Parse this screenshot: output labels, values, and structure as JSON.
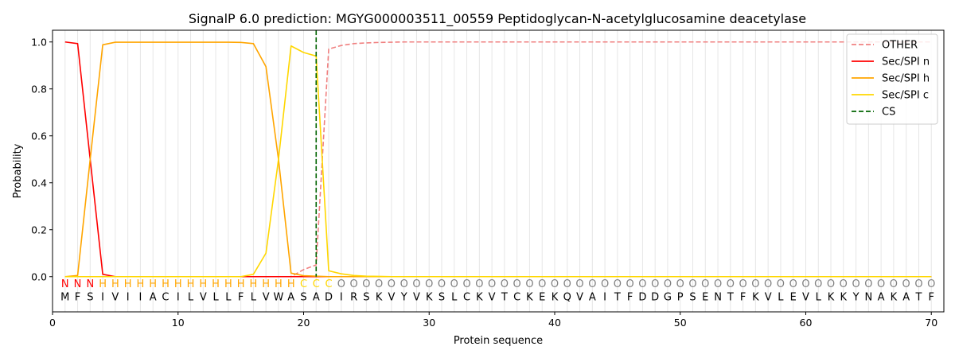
{
  "chart_data": {
    "type": "line",
    "title": "SignalP 6.0 prediction: MGYG000003511_00559 Peptidoglycan-N-acetylglucosamine deacetylase",
    "xlabel": "Protein sequence",
    "ylabel": "Probability",
    "xlim": [
      0,
      71
    ],
    "ylim": [
      -0.15,
      1.05
    ],
    "xticks": [
      0,
      10,
      20,
      30,
      40,
      50,
      60,
      70
    ],
    "yticks": [
      0.0,
      0.2,
      0.4,
      0.6,
      0.8,
      1.0
    ],
    "xtick_labels": [
      "0",
      "10",
      "20",
      "30",
      "40",
      "50",
      "60",
      "70"
    ],
    "ytick_labels": [
      "0.0",
      "0.2",
      "0.4",
      "0.6",
      "0.8",
      "1.0"
    ],
    "legend_position": "top-right",
    "sequence": "MFSIVIIACILVLLFLVWASADIRSKVYVKSLCKVTCKEKQVAITFDDGPSENTFKVLEVLKKYNAKATF",
    "labels": "NNNHHHHHHHHHHHHHHHHCCCOOOOOOOOOOOOOOOOOOOOOOOOOOOOOOOOOOOOOOOOOOOOOOOOO",
    "label_colors": {
      "N": "#ff0000",
      "H": "#ffa500",
      "C": "#ffd700",
      "O": "#808080"
    },
    "cleavage_site": 21,
    "series": [
      {
        "name": "OTHER",
        "color": "#f08080",
        "dash": "dashed",
        "values": [
          0,
          0,
          0,
          0,
          0,
          0,
          0,
          0,
          0,
          0,
          0,
          0,
          0,
          0,
          0,
          0,
          0,
          0,
          0,
          0.03,
          0.05,
          0.97,
          0.985,
          0.993,
          0.996,
          0.998,
          0.999,
          1,
          1,
          1,
          1,
          1,
          1,
          1,
          1,
          1,
          1,
          1,
          1,
          1,
          1,
          1,
          1,
          1,
          1,
          1,
          1,
          1,
          1,
          1,
          1,
          1,
          1,
          1,
          1,
          1,
          1,
          1,
          1,
          1,
          1,
          1,
          1,
          1,
          1,
          1,
          1,
          1,
          1,
          1
        ]
      },
      {
        "name": "Sec/SPI n",
        "color": "#ff0000",
        "dash": "solid",
        "values": [
          1.0,
          0.993,
          0.5,
          0.01,
          0,
          0,
          0,
          0,
          0,
          0,
          0,
          0,
          0,
          0,
          0,
          0,
          0,
          0,
          0,
          0,
          0,
          0,
          0,
          0,
          0,
          0,
          0,
          0,
          0,
          0,
          0,
          0,
          0,
          0,
          0,
          0,
          0,
          0,
          0,
          0,
          0,
          0,
          0,
          0,
          0,
          0,
          0,
          0,
          0,
          0,
          0,
          0,
          0,
          0,
          0,
          0,
          0,
          0,
          0,
          0,
          0,
          0,
          0,
          0,
          0,
          0,
          0,
          0,
          0,
          0
        ]
      },
      {
        "name": "Sec/SPI h",
        "color": "#ffa500",
        "dash": "solid",
        "values": [
          0,
          0.005,
          0.5,
          0.988,
          0.999,
          0.999,
          0.999,
          0.999,
          0.999,
          0.999,
          0.999,
          0.999,
          0.999,
          0.999,
          0.998,
          0.993,
          0.895,
          0.5,
          0.015,
          0.004,
          0.002,
          0,
          0,
          0,
          0,
          0,
          0,
          0,
          0,
          0,
          0,
          0,
          0,
          0,
          0,
          0,
          0,
          0,
          0,
          0,
          0,
          0,
          0,
          0,
          0,
          0,
          0,
          0,
          0,
          0,
          0,
          0,
          0,
          0,
          0,
          0,
          0,
          0,
          0,
          0,
          0,
          0,
          0,
          0,
          0,
          0,
          0,
          0,
          0,
          0
        ]
      },
      {
        "name": "Sec/SPI c",
        "color": "#ffd700",
        "dash": "solid",
        "values": [
          0,
          0,
          0,
          0,
          0,
          0,
          0,
          0,
          0,
          0,
          0,
          0,
          0,
          0,
          0,
          0.01,
          0.1,
          0.5,
          0.983,
          0.955,
          0.94,
          0.025,
          0.012,
          0.005,
          0.002,
          0.001,
          0,
          0,
          0,
          0,
          0,
          0,
          0,
          0,
          0,
          0,
          0,
          0,
          0,
          0,
          0,
          0,
          0,
          0,
          0,
          0,
          0,
          0,
          0,
          0,
          0,
          0,
          0,
          0,
          0,
          0,
          0,
          0,
          0,
          0,
          0,
          0,
          0,
          0,
          0,
          0,
          0,
          0,
          0,
          0
        ]
      }
    ],
    "cs_legend": {
      "name": "CS",
      "color": "#006400",
      "dash": "dashed"
    }
  }
}
